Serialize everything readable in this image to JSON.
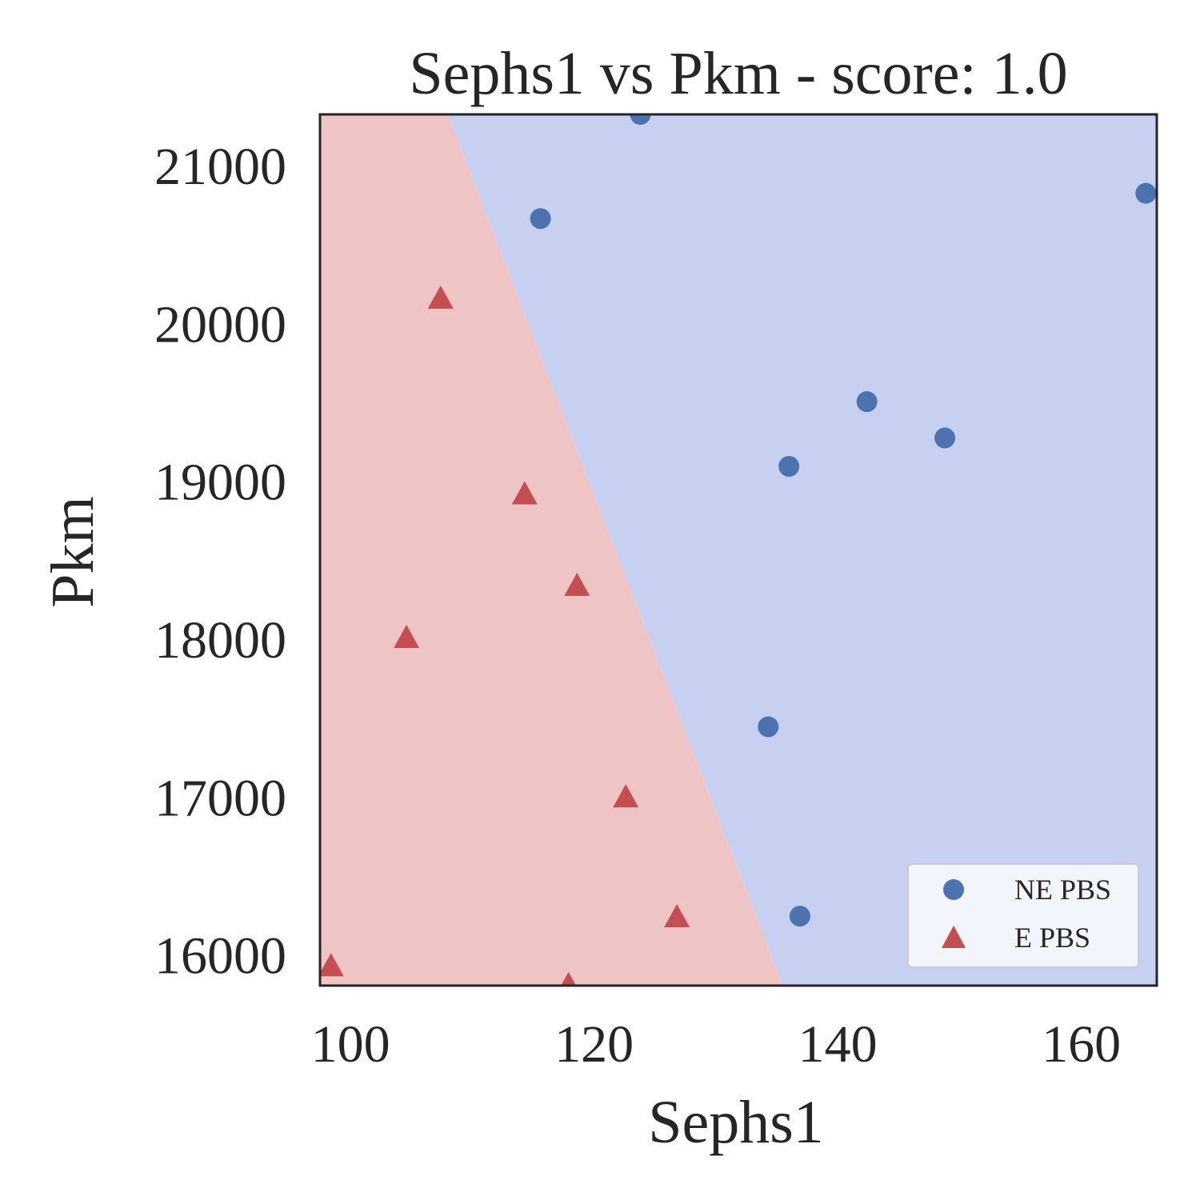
{
  "chart_data": {
    "type": "scatter",
    "title": "Sephs1 vs Pkm - score: 1.0",
    "xlabel": "Sephs1",
    "ylabel": "Pkm",
    "xlim": [
      97.5,
      166.2
    ],
    "ylim": [
      15800,
      21320
    ],
    "xticks": [
      100,
      120,
      140,
      160
    ],
    "yticks": [
      16000,
      17000,
      18000,
      19000,
      20000,
      21000
    ],
    "grid": false,
    "legend_position": "lower-right",
    "decision_boundary": {
      "points": [
        [
          108.0,
          21320
        ],
        [
          135.5,
          15800
        ]
      ],
      "left_region_color": "#EEC4C4",
      "right_region_color": "#C8D0F1"
    },
    "series": [
      {
        "name": "NE PBS",
        "marker": "circle",
        "color": "#4C72B0",
        "points": [
          [
            123.8,
            21320
          ],
          [
            115.6,
            20660
          ],
          [
            165.3,
            20820
          ],
          [
            142.4,
            19500
          ],
          [
            148.8,
            19270
          ],
          [
            136.0,
            19090
          ],
          [
            134.3,
            17440
          ],
          [
            136.9,
            16240
          ]
        ]
      },
      {
        "name": "E PBS",
        "marker": "triangle",
        "color": "#C44E52",
        "points": [
          [
            107.4,
            20150
          ],
          [
            114.3,
            18910
          ],
          [
            118.6,
            18330
          ],
          [
            104.6,
            18000
          ],
          [
            122.6,
            16990
          ],
          [
            126.8,
            16230
          ],
          [
            98.4,
            15920
          ],
          [
            117.9,
            15800
          ]
        ]
      }
    ]
  }
}
